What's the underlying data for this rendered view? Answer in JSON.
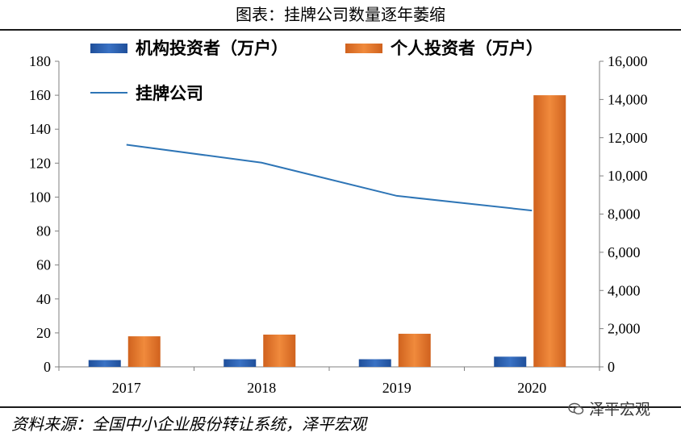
{
  "header": {
    "title": "图表：挂牌公司数量逐年萎缩"
  },
  "footer": {
    "source": "资料来源：全国中小企业股份转让系统，泽平宏观",
    "watermark": "泽平宏观"
  },
  "colors": {
    "institutional": "#3a72c4",
    "individual": "#f08a3c",
    "line": "#2e75b6"
  },
  "chart_data": {
    "type": "bar",
    "categories": [
      "2017",
      "2018",
      "2019",
      "2020"
    ],
    "series": [
      {
        "name": "机构投资者（万户）",
        "type": "bar",
        "axis": "left",
        "values": [
          4,
          4.5,
          4.5,
          6
        ]
      },
      {
        "name": "个人投资者（万户）",
        "type": "bar",
        "axis": "left",
        "values": [
          18,
          19,
          19.5,
          160
        ]
      },
      {
        "name": "挂牌公司",
        "type": "line",
        "axis": "right",
        "values": [
          11630,
          10691,
          8953,
          8187
        ]
      }
    ],
    "y_left": {
      "min": 0,
      "max": 180,
      "ticks": [
        "0",
        "20",
        "40",
        "60",
        "80",
        "100",
        "120",
        "140",
        "160",
        "180"
      ]
    },
    "y_right": {
      "min": 0,
      "max": 16000,
      "ticks": [
        "0",
        "2,000",
        "4,000",
        "6,000",
        "8,000",
        "10,000",
        "12,000",
        "14,000",
        "16,000"
      ]
    },
    "legend": "top-left",
    "grid": false
  }
}
